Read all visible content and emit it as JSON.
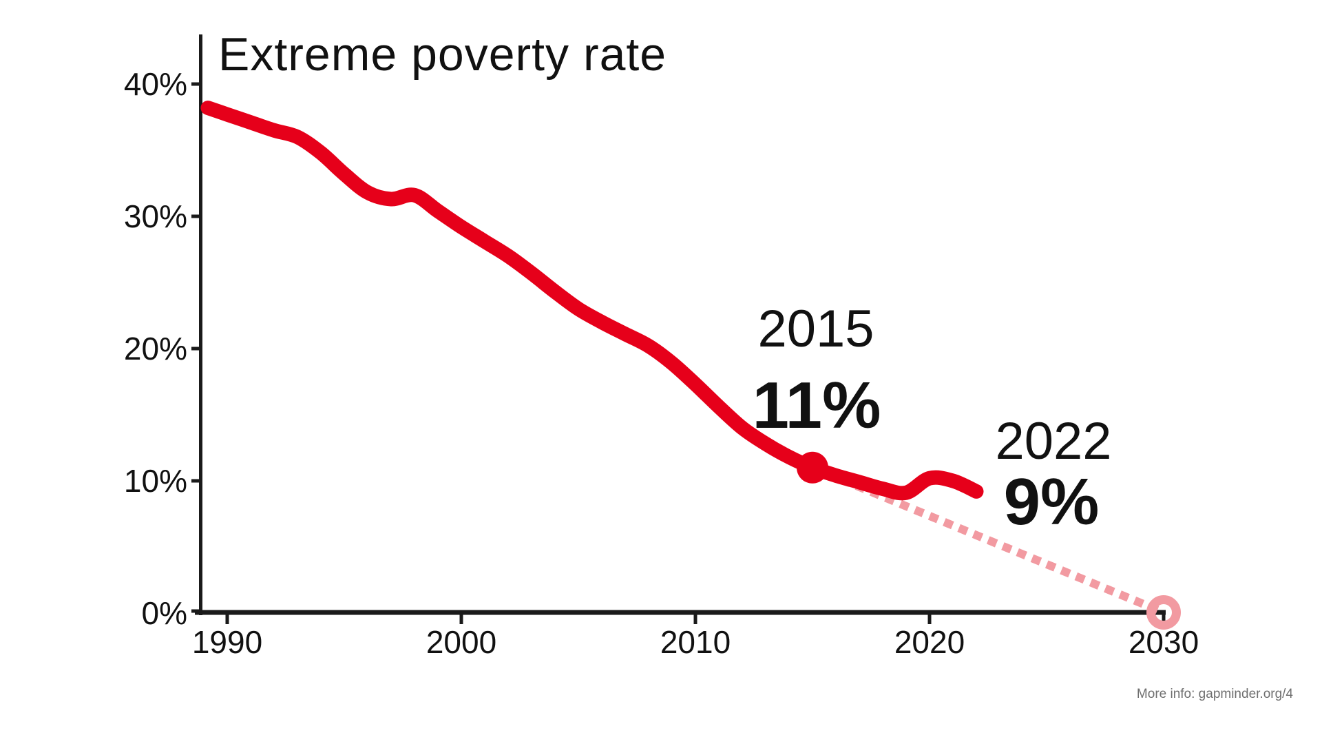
{
  "page": {
    "background": "#ffffff",
    "footer": "More info: gapminder.org/4"
  },
  "chart_data": {
    "type": "line",
    "title": "Extreme poverty rate",
    "xlabel": "",
    "ylabel": "",
    "grid": false,
    "legend": "none",
    "xlim": [
      1989,
      2030.5
    ],
    "ylim": [
      0,
      43
    ],
    "x_tick_labels": [
      "1990",
      "2000",
      "2010",
      "2020",
      "2030"
    ],
    "x_tick_years": [
      1990,
      2000,
      2010,
      2020,
      2030
    ],
    "y_tick_labels": [
      "40%",
      "30%",
      "20%",
      "10%",
      "0%"
    ],
    "y_tick_values": [
      40,
      30,
      20,
      10,
      0
    ],
    "series": [
      {
        "name": "Extreme poverty rate (%)",
        "years": [
          1989,
          1990,
          1991,
          1992,
          1993,
          1994,
          1995,
          1996,
          1997,
          1998,
          1999,
          2000,
          2001,
          2002,
          2003,
          2004,
          2005,
          2006,
          2007,
          2008,
          2009,
          2010,
          2011,
          2012,
          2013,
          2014,
          2015,
          2016,
          2017,
          2018,
          2019,
          2020,
          2021,
          2022
        ],
        "values": [
          38.2,
          37.7,
          37.1,
          36.5,
          36.0,
          34.8,
          33.2,
          31.8,
          31.3,
          31.6,
          30.4,
          29.2,
          28.1,
          27.0,
          25.7,
          24.3,
          23.0,
          22.0,
          21.1,
          20.2,
          18.9,
          17.3,
          15.6,
          14.0,
          12.8,
          11.8,
          11.0,
          10.4,
          9.9,
          9.4,
          9.1,
          10.2,
          10.0,
          9.2
        ]
      }
    ],
    "annotations": [
      {
        "year": 2015,
        "value": 11,
        "year_label": "2015",
        "value_label": "11%",
        "marker": "filled-dot"
      },
      {
        "year": 2022,
        "value": 9,
        "year_label": "2022",
        "value_label": "9%",
        "marker": "line-end"
      }
    ],
    "projection": {
      "from_year": 2015,
      "from_value": 11,
      "to_year": 2030,
      "to_value": 0,
      "style": "dotted",
      "end_marker": "open-circle"
    },
    "colors": {
      "line": "#e6001a",
      "projection": "#f29aa1",
      "axis": "#1a1a1a",
      "text": "#111111",
      "footer_text": "#6f6f6f"
    }
  }
}
